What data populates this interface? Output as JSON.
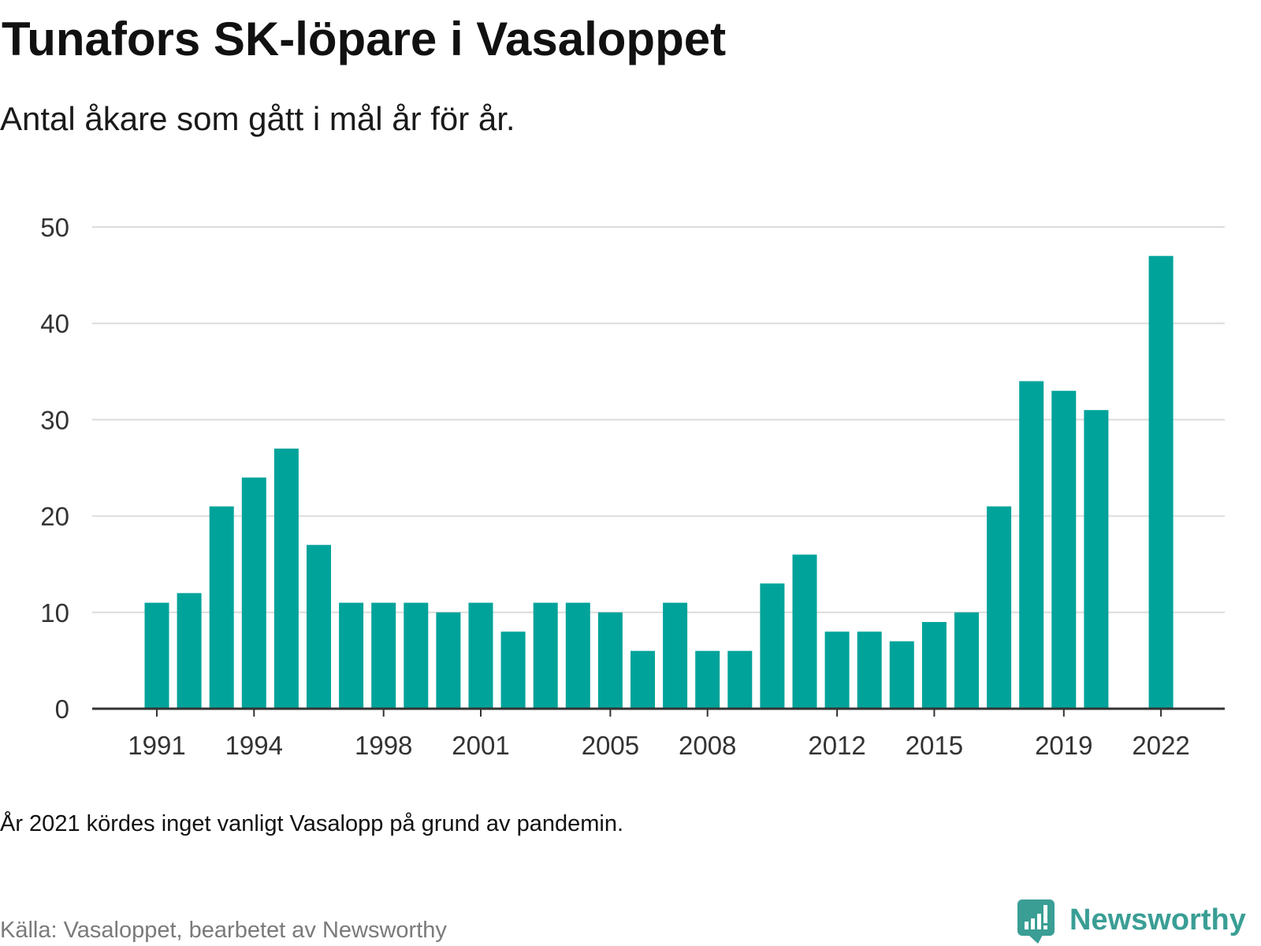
{
  "chart_data": {
    "type": "bar",
    "title": "Tunafors SK-löpare i Vasaloppet",
    "subtitle": "Antal åkare som gått i mål år för år.",
    "categories": [
      "1991",
      "1992",
      "1993",
      "1994",
      "1995",
      "1996",
      "1997",
      "1998",
      "1999",
      "2000",
      "2001",
      "2002",
      "2003",
      "2004",
      "2005",
      "2006",
      "2007",
      "2008",
      "2009",
      "2010",
      "2011",
      "2012",
      "2013",
      "2014",
      "2015",
      "2016",
      "2017",
      "2018",
      "2019",
      "2020",
      "2021",
      "2022"
    ],
    "values": [
      11,
      12,
      21,
      24,
      27,
      17,
      11,
      11,
      11,
      10,
      11,
      8,
      11,
      11,
      10,
      6,
      11,
      6,
      6,
      13,
      16,
      8,
      8,
      7,
      9,
      10,
      21,
      34,
      33,
      31,
      null,
      47
    ],
    "x_tick_labels": [
      "1991",
      "1994",
      "1998",
      "2001",
      "2005",
      "2008",
      "2012",
      "2015",
      "2019",
      "2022"
    ],
    "y_ticks": [
      0,
      10,
      20,
      30,
      40,
      50
    ],
    "ylim": [
      0,
      50
    ],
    "grid": true,
    "legend": "none",
    "note": "År 2021 kördes inget vanligt Vasalopp på grund av pandemin.",
    "source": "Källa: Vasaloppet, bearbetet av Newsworthy"
  },
  "branding": {
    "logo_text": "Newsworthy",
    "logo_icon": "bar-chart-speech-bubble-icon"
  },
  "colors": {
    "bar": "#00A39A",
    "logo": "#3A9E95"
  }
}
